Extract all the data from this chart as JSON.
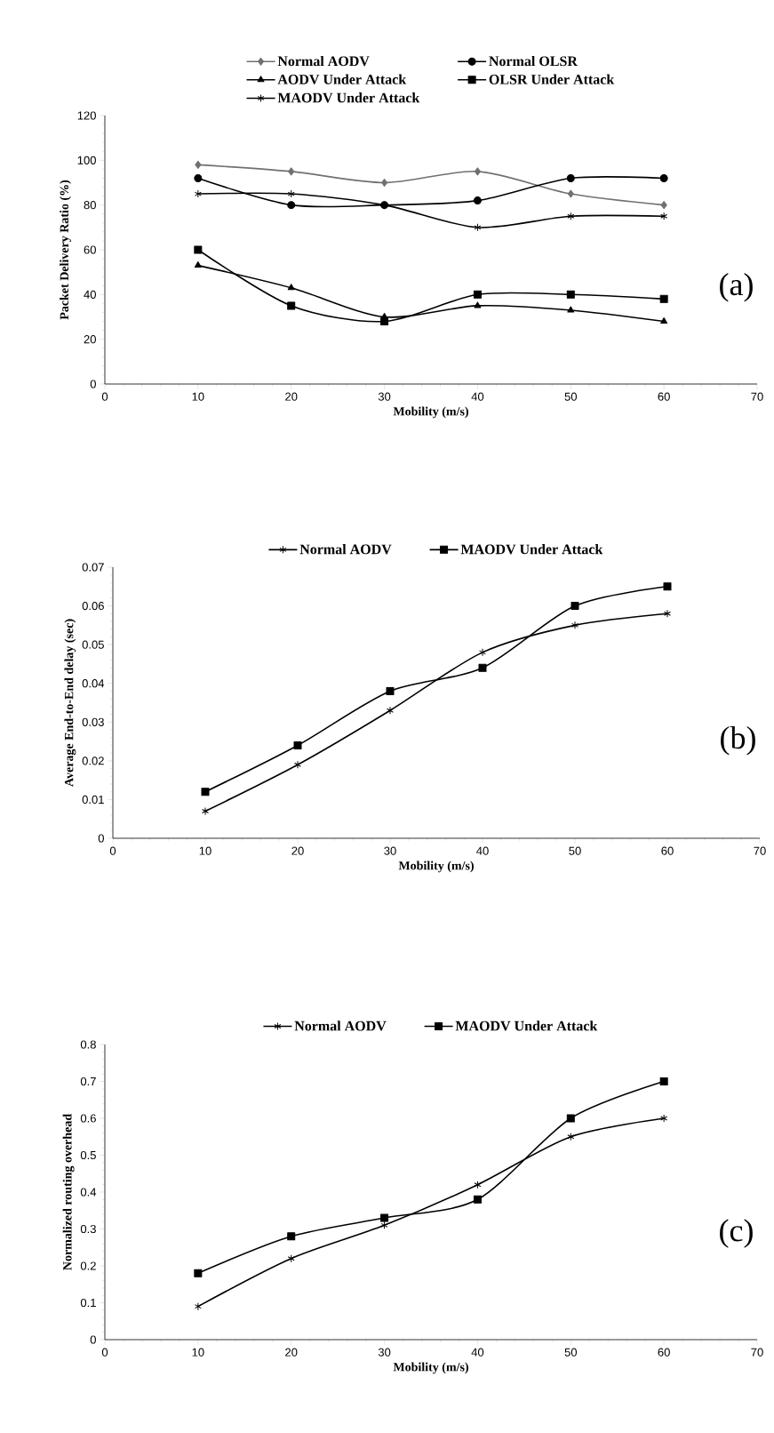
{
  "chart_data": [
    {
      "type": "line",
      "xlabel": "Mobility (m/s)",
      "ylabel": "Packet Delivery Ratio (%)",
      "x": [
        10,
        20,
        30,
        40,
        50,
        60
      ],
      "xlim": [
        0,
        70
      ],
      "xticks": [
        0,
        10,
        20,
        30,
        40,
        50,
        60,
        70
      ],
      "ylim": [
        0,
        120
      ],
      "yticks": [
        0,
        20,
        40,
        60,
        80,
        100,
        120
      ],
      "legend": "top",
      "annotations": [
        "(a)"
      ],
      "series": [
        {
          "name": "Normal AODV",
          "color": "#707070",
          "marker": "diamond",
          "values": [
            98,
            95,
            90,
            95,
            85,
            80
          ]
        },
        {
          "name": "Normal OLSR",
          "color": "#000000",
          "marker": "circle",
          "values": [
            92,
            80,
            80,
            82,
            92,
            92
          ]
        },
        {
          "name": "AODV Under Attack",
          "color": "#000000",
          "marker": "triangle",
          "values": [
            53,
            43,
            30,
            35,
            33,
            28
          ]
        },
        {
          "name": "OLSR Under Attack",
          "color": "#000000",
          "marker": "square",
          "values": [
            60,
            35,
            28,
            40,
            40,
            38
          ]
        },
        {
          "name": "MAODV Under Attack",
          "color": "#000000",
          "marker": "cross",
          "values": [
            85,
            85,
            80,
            70,
            75,
            75
          ]
        }
      ]
    },
    {
      "type": "line",
      "xlabel": "Mobility (m/s)",
      "ylabel": "Average End-to-End delay (sec)",
      "x": [
        10,
        20,
        30,
        40,
        50,
        60
      ],
      "xlim": [
        0,
        70
      ],
      "xticks": [
        0,
        10,
        20,
        30,
        40,
        50,
        60,
        70
      ],
      "ylim": [
        0,
        0.07
      ],
      "yticks": [
        0,
        0.01,
        0.02,
        0.03,
        0.04,
        0.05,
        0.06,
        0.07
      ],
      "legend": "top",
      "annotations": [
        "(b)"
      ],
      "series": [
        {
          "name": "Normal AODV",
          "color": "#000000",
          "marker": "cross",
          "values": [
            0.007,
            0.019,
            0.033,
            0.048,
            0.055,
            0.058
          ]
        },
        {
          "name": "MAODV Under Attack",
          "color": "#000000",
          "marker": "square",
          "values": [
            0.012,
            0.024,
            0.038,
            0.044,
            0.06,
            0.065
          ]
        }
      ]
    },
    {
      "type": "line",
      "xlabel": "Mobility (m/s)",
      "ylabel": "Normalized routing overhead",
      "x": [
        10,
        20,
        30,
        40,
        50,
        60
      ],
      "xlim": [
        0,
        70
      ],
      "xticks": [
        0,
        10,
        20,
        30,
        40,
        50,
        60,
        70
      ],
      "ylim": [
        0,
        0.8
      ],
      "yticks": [
        0,
        0.1,
        0.2,
        0.3,
        0.4,
        0.5,
        0.6,
        0.7,
        0.8
      ],
      "legend": "top",
      "annotations": [
        "(c)"
      ],
      "series": [
        {
          "name": "Normal AODV",
          "color": "#000000",
          "marker": "cross",
          "values": [
            0.09,
            0.22,
            0.31,
            0.42,
            0.55,
            0.6
          ]
        },
        {
          "name": "MAODV Under Attack",
          "color": "#000000",
          "marker": "square",
          "values": [
            0.18,
            0.28,
            0.33,
            0.38,
            0.6,
            0.7
          ]
        }
      ]
    }
  ]
}
